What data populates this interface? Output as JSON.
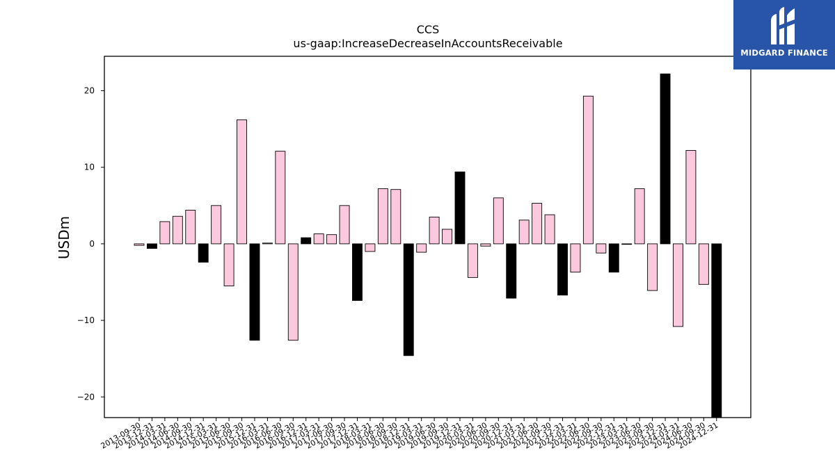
{
  "brand": {
    "name": "MIDGARD FINANCE",
    "logo_color": "#2855a8"
  },
  "chart_data": {
    "type": "bar",
    "title": "CCS",
    "subtitle": "us-gaap:IncreaseDecreaseInAccountsReceivable",
    "ylabel": "USDm",
    "xlabel": "",
    "ylim": [
      -22.7,
      24.5
    ],
    "yticks": [
      -20,
      -10,
      0,
      10,
      20
    ],
    "grid": false,
    "legend": "none",
    "colors": {
      "quarter": "#fbc8dd",
      "year_end": "#000000",
      "edge": "#000000"
    },
    "categories": [
      "2013-09-30",
      "2013-12-31",
      "2014-03-31",
      "2014-06-30",
      "2014-09-30",
      "2014-12-31",
      "2015-03-31",
      "2015-06-30",
      "2015-09-30",
      "2015-12-31",
      "2016-03-31",
      "2016-06-30",
      "2016-09-30",
      "2016-12-31",
      "2017-03-31",
      "2017-06-30",
      "2017-09-30",
      "2017-12-31",
      "2018-03-31",
      "2018-06-30",
      "2018-09-30",
      "2018-12-31",
      "2019-03-31",
      "2019-06-30",
      "2019-09-30",
      "2019-12-31",
      "2020-03-31",
      "2020-06-30",
      "2020-09-30",
      "2020-12-31",
      "2021-03-31",
      "2021-06-30",
      "2021-09-30",
      "2021-12-31",
      "2022-03-31",
      "2022-06-30",
      "2022-09-30",
      "2022-12-31",
      "2023-03-31",
      "2023-06-30",
      "2023-09-30",
      "2023-12-31",
      "2024-03-31",
      "2024-06-30",
      "2024-09-30",
      "2024-12-31"
    ],
    "values": [
      -0.2,
      -0.6,
      2.9,
      3.6,
      4.4,
      -2.4,
      5.0,
      -5.5,
      16.2,
      -12.6,
      0.1,
      12.1,
      -12.6,
      0.8,
      1.3,
      1.2,
      5.0,
      -7.4,
      -1.0,
      7.2,
      7.1,
      -14.6,
      -1.1,
      3.5,
      1.9,
      9.4,
      -4.4,
      -0.3,
      6.0,
      -7.1,
      3.1,
      5.3,
      3.8,
      -6.7,
      -3.7,
      19.3,
      -1.2,
      -3.7,
      0.0,
      7.2,
      -6.1,
      22.2,
      -10.8,
      12.2,
      -5.3,
      -22.7
    ],
    "year_end": [
      false,
      true,
      false,
      false,
      false,
      true,
      false,
      false,
      false,
      true,
      false,
      false,
      false,
      true,
      false,
      false,
      false,
      true,
      false,
      false,
      false,
      true,
      false,
      false,
      false,
      true,
      false,
      false,
      false,
      true,
      false,
      false,
      false,
      true,
      false,
      false,
      false,
      true,
      false,
      false,
      false,
      true,
      false,
      false,
      false,
      true
    ]
  }
}
